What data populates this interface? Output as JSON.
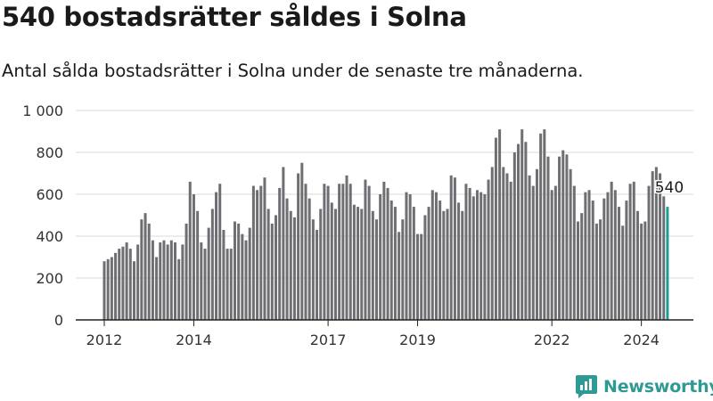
{
  "header": {
    "title": "540 bostadsrätter såldes i Solna",
    "subtitle": "Antal sålda bostadsrätter i Solna under de senaste tre månaderna."
  },
  "brand": {
    "name": "Newsworthy"
  },
  "colors": {
    "bar": "#6e6e73",
    "highlight": "#1a9e96",
    "grid": "#d9d9d9",
    "axis": "#222222",
    "brand": "#2e9a94"
  },
  "chart_data": {
    "type": "bar",
    "title": "540 bostadsrätter såldes i Solna",
    "subtitle": "Antal sålda bostadsrätter i Solna under de senaste tre månaderna.",
    "xlabel": "",
    "ylabel": "",
    "ylim": [
      0,
      1000
    ],
    "y_ticks": [
      0,
      200,
      400,
      600,
      800,
      1000
    ],
    "y_tick_labels": [
      "0",
      "200",
      "400",
      "600",
      "800",
      "1 000"
    ],
    "grid": true,
    "start": "2012-01",
    "x_tick_labels": [
      {
        "label": "2012",
        "index": 0
      },
      {
        "label": "2014",
        "index": 24
      },
      {
        "label": "2017",
        "index": 60
      },
      {
        "label": "2019",
        "index": 84
      },
      {
        "label": "2022",
        "index": 120
      },
      {
        "label": "2024",
        "index": 144
      }
    ],
    "annotation": {
      "index": 151,
      "text": "540"
    },
    "highlight_index": 151,
    "values": [
      280,
      290,
      300,
      320,
      340,
      350,
      370,
      340,
      280,
      360,
      480,
      510,
      460,
      380,
      300,
      370,
      380,
      360,
      380,
      370,
      290,
      360,
      460,
      660,
      600,
      520,
      370,
      340,
      440,
      530,
      610,
      650,
      430,
      340,
      340,
      470,
      460,
      410,
      380,
      440,
      640,
      620,
      640,
      680,
      530,
      460,
      500,
      630,
      730,
      580,
      520,
      490,
      700,
      750,
      650,
      580,
      480,
      430,
      530,
      650,
      640,
      560,
      530,
      650,
      650,
      690,
      650,
      550,
      540,
      530,
      670,
      640,
      520,
      480,
      600,
      660,
      630,
      570,
      540,
      420,
      480,
      610,
      600,
      540,
      410,
      410,
      500,
      540,
      620,
      610,
      570,
      520,
      530,
      690,
      680,
      560,
      520,
      650,
      630,
      590,
      620,
      610,
      600,
      670,
      730,
      870,
      910,
      730,
      700,
      660,
      800,
      840,
      910,
      850,
      690,
      640,
      720,
      890,
      910,
      780,
      620,
      640,
      780,
      810,
      790,
      720,
      640,
      470,
      510,
      610,
      620,
      570,
      460,
      480,
      580,
      610,
      660,
      620,
      540,
      450,
      570,
      650,
      660,
      520,
      460,
      470,
      640,
      710,
      730,
      700,
      590,
      540
    ]
  }
}
